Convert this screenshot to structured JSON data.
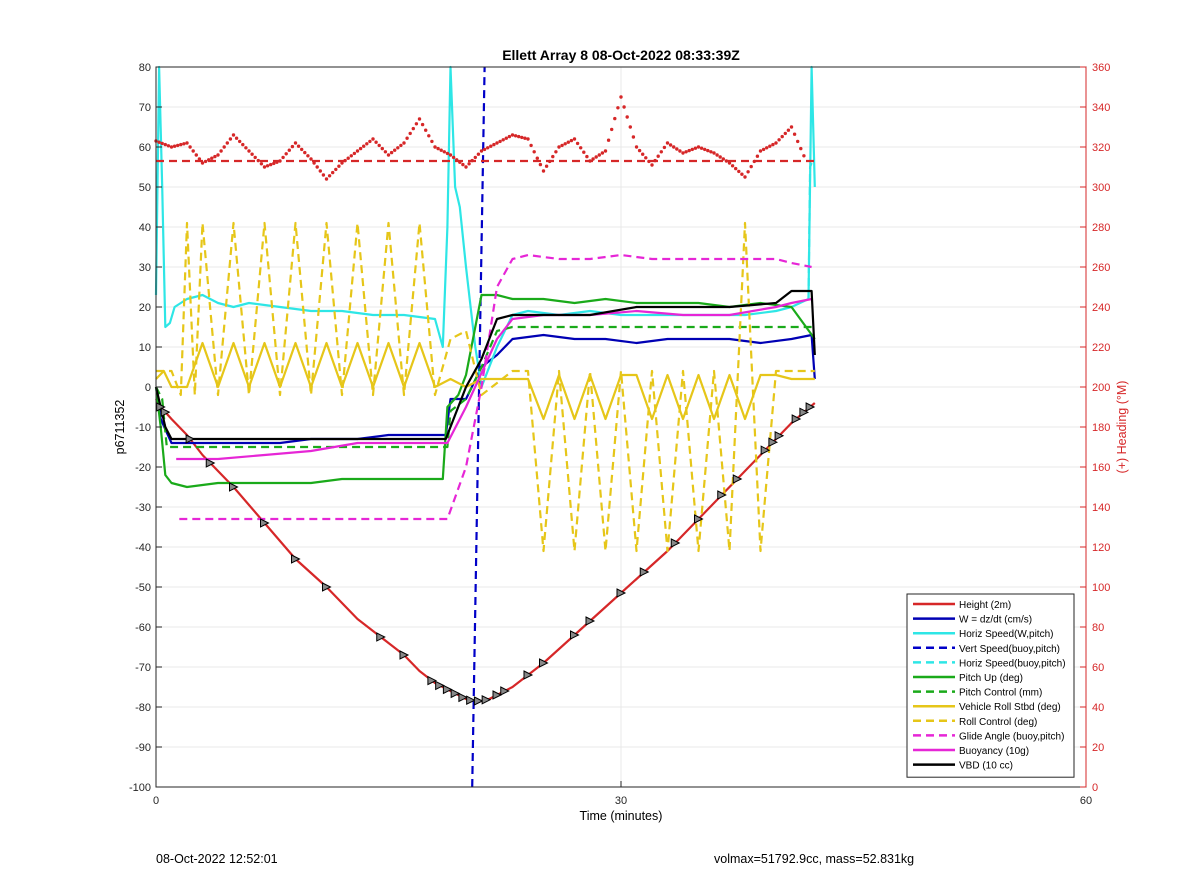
{
  "footer": {
    "timestamp": "08-Oct-2022 12:52:01",
    "vol_mass": "volmax=51792.9cc, mass=52.831kg"
  },
  "chart_data": {
    "type": "line",
    "title": "Ellett Array 8 08-Oct-2022 08:33:39Z",
    "xlabel": "Time (minutes)",
    "ylabel": "p6711352",
    "y2label": "(+) Heading (°M)",
    "xlim": [
      0,
      60
    ],
    "ylim": [
      -100,
      80
    ],
    "y2lim": [
      0,
      360
    ],
    "xticks": [
      0,
      30,
      60
    ],
    "yticks": [
      -100,
      -90,
      -80,
      -70,
      -60,
      -50,
      -40,
      -30,
      -20,
      -10,
      0,
      10,
      20,
      30,
      40,
      50,
      60,
      70,
      80
    ],
    "y2ticks": [
      0,
      20,
      40,
      60,
      80,
      100,
      120,
      140,
      160,
      180,
      200,
      220,
      240,
      260,
      280,
      300,
      320,
      340,
      360
    ],
    "grid": true,
    "legend_position": "bottom-right",
    "colors": {
      "height": "#d62728",
      "w": "#0000b4",
      "horiz_speed": "#2ee6e6",
      "vert_speed_buoy": "#0000c8",
      "horiz_speed_buoy": "#2ee6e6",
      "pitch": "#1aaa1a",
      "pitch_control": "#1aaa1a",
      "roll": "#e6c619",
      "roll_control": "#e6c619",
      "glide": "#e626d6",
      "buoyancy": "#e626d6",
      "vbd": "#000000",
      "heading": "#d62728"
    },
    "series": [
      {
        "name": "Height (2m)",
        "color_key": "height",
        "dash": false,
        "x": [
          0,
          0.3,
          1,
          2,
          3,
          5,
          7,
          9,
          11,
          13,
          15,
          16,
          17,
          18,
          19,
          19.5,
          20,
          20.5,
          21,
          21.5,
          22,
          23,
          25,
          27,
          29,
          31,
          33,
          35,
          37,
          39,
          40,
          41,
          42.5
        ],
        "y": [
          -3,
          -5,
          -8,
          -12,
          -17,
          -25,
          -34,
          -43,
          -50,
          -58,
          -64,
          -67,
          -71,
          -74,
          -76,
          -77,
          -78,
          -78.5,
          -78.5,
          -78,
          -77,
          -75,
          -69,
          -62,
          -55,
          -48,
          -41,
          -33,
          -25,
          -17,
          -13,
          -9,
          -4
        ]
      },
      {
        "name": "W = dz/dt (cm/s)",
        "color_key": "w",
        "dash": false,
        "x": [
          0,
          0.3,
          1,
          3,
          5,
          8,
          10,
          13,
          15,
          17,
          18,
          18.7,
          19,
          20,
          21,
          22,
          23,
          25,
          27,
          29,
          31,
          33,
          35,
          37,
          39,
          41,
          42.3,
          42.5
        ],
        "y": [
          0,
          -8,
          -14,
          -14,
          -14,
          -14,
          -13,
          -13,
          -12,
          -12,
          -12,
          -12,
          -3,
          -3,
          5,
          8,
          12,
          13,
          12,
          12,
          11,
          12,
          12,
          12,
          11,
          12,
          13,
          2
        ]
      },
      {
        "name": "Horiz Speed(W,pitch)",
        "color_key": "horiz_speed",
        "dash": false,
        "x": [
          0,
          0.2,
          0.4,
          0.6,
          0.9,
          1.2,
          2,
          3,
          4,
          5,
          6,
          8,
          10,
          12,
          14,
          16,
          18,
          18.5,
          18.8,
          19,
          19.3,
          19.6,
          20,
          20.3,
          20.6,
          21,
          22,
          23,
          24,
          26,
          28,
          30,
          32,
          34,
          36,
          38,
          40,
          41,
          42.1,
          42.3,
          42.5
        ],
        "y": [
          23,
          80,
          50,
          15,
          16,
          20,
          22,
          23,
          21,
          20,
          21,
          20,
          19,
          19,
          18,
          18,
          17,
          10,
          40,
          80,
          50,
          45,
          30,
          20,
          10,
          0,
          10,
          18,
          19,
          18,
          19,
          18,
          18,
          18,
          18,
          18,
          19,
          20,
          22,
          80,
          50
        ]
      },
      {
        "name": "Vert Speed(buoy,pitch)",
        "color_key": "vert_speed_buoy",
        "dash": true,
        "x": [
          20.4,
          21.2
        ],
        "y": [
          -100,
          80
        ]
      },
      {
        "name": "Horiz Speed(buoy,pitch)",
        "color_key": "horiz_speed_buoy",
        "dash": true,
        "x": [
          42.1,
          42.2,
          42.3
        ],
        "y": [
          22,
          55,
          56
        ]
      },
      {
        "name": "Pitch Up (deg)",
        "color_key": "pitch",
        "dash": false,
        "x": [
          0,
          0.3,
          0.6,
          1,
          2,
          4,
          6,
          8,
          10,
          12,
          14,
          16,
          18,
          18.5,
          18.8,
          19.5,
          20,
          21,
          22,
          23,
          25,
          27,
          29,
          31,
          33,
          35,
          37,
          39,
          41,
          42.5
        ],
        "y": [
          0,
          -10,
          -22,
          -24,
          -25,
          -24,
          -24,
          -24,
          -24,
          -23,
          -23,
          -23,
          -23,
          -23,
          -5,
          -2,
          3,
          23,
          23,
          22,
          22,
          21,
          22,
          21,
          21,
          21,
          20,
          21,
          20,
          12
        ]
      },
      {
        "name": "Pitch Control (mm)",
        "color_key": "pitch_control",
        "dash": true,
        "x": [
          0,
          0.4,
          0.7,
          18.8,
          19,
          20,
          21,
          22,
          23,
          42.3
        ],
        "y": [
          0,
          -3,
          -15,
          -15,
          -6,
          -3,
          5,
          14,
          15,
          15
        ]
      },
      {
        "name": "Vehicle Roll Stbd (deg)",
        "color_key": "roll",
        "dash": false,
        "x": [
          0,
          0.5,
          1,
          2,
          3,
          4,
          5,
          6,
          7,
          8,
          9,
          10,
          11,
          12,
          13,
          14,
          15,
          16,
          17,
          18,
          19,
          20,
          21,
          23,
          24,
          25,
          26,
          27,
          28,
          29,
          30,
          31,
          32,
          33,
          34,
          35,
          36,
          37,
          38,
          39,
          40,
          41,
          42.5
        ],
        "y": [
          2,
          4,
          0,
          0,
          11,
          0,
          11,
          0,
          11,
          0,
          11,
          0,
          11,
          0,
          11,
          0,
          11,
          0,
          11,
          0,
          2,
          0,
          2,
          2,
          2,
          -8,
          3,
          -8,
          3,
          -8,
          3,
          3,
          -8,
          3,
          -8,
          3,
          -8,
          3,
          -8,
          3,
          3,
          2,
          2
        ]
      },
      {
        "name": "Roll Control (deg)",
        "color_key": "roll_control",
        "dash": true,
        "x": [
          0,
          0.5,
          1,
          1.6,
          2,
          2.5,
          3,
          4,
          5,
          6,
          7,
          8,
          9,
          10,
          11,
          12,
          13,
          14,
          15,
          16,
          17,
          18,
          19,
          20,
          21,
          23,
          24,
          25,
          26,
          27,
          28,
          29,
          30,
          31,
          32,
          33,
          34,
          35,
          36,
          37,
          38,
          39,
          40,
          41,
          42.5
        ],
        "y": [
          4,
          4,
          4,
          -2,
          41,
          -2,
          41,
          -2,
          41,
          -2,
          41,
          -2,
          41,
          -2,
          41,
          -2,
          41,
          -2,
          41,
          -2,
          41,
          -2,
          12,
          14,
          -2,
          4,
          4,
          -41,
          4,
          -41,
          4,
          -41,
          4,
          -41,
          4,
          -41,
          4,
          -41,
          4,
          -41,
          41,
          -41,
          4,
          4,
          4
        ]
      },
      {
        "name": "Glide Angle (buoy,pitch)",
        "color_key": "glide",
        "dash": true,
        "x": [
          1.5,
          3,
          6,
          9,
          12,
          15,
          18,
          18.8,
          20,
          21,
          22,
          23,
          24,
          26,
          28,
          30,
          32,
          34,
          36,
          38,
          40,
          41,
          42.3
        ],
        "y": [
          -33,
          -33,
          -33,
          -33,
          -33,
          -33,
          -33,
          -33,
          -20,
          0,
          25,
          32,
          33,
          32,
          32,
          33,
          32,
          32,
          32,
          32,
          32,
          31,
          30
        ]
      },
      {
        "name": "Buoyancy (10g)",
        "color_key": "buoyancy",
        "dash": false,
        "x": [
          1.3,
          4,
          7,
          10,
          13,
          16,
          18.8,
          20,
          22,
          23,
          25,
          28,
          31,
          34,
          37,
          40,
          41,
          42.3
        ],
        "y": [
          -18,
          -18,
          -17,
          -16,
          -14,
          -14,
          -14,
          -5,
          12,
          17,
          18,
          18,
          19,
          18,
          18,
          20,
          21,
          22
        ]
      },
      {
        "name": "VBD (10 cc)",
        "color_key": "vbd",
        "dash": false,
        "x": [
          0,
          0.3,
          0.6,
          1,
          5,
          10,
          15,
          18.7,
          20,
          21,
          22,
          23,
          25,
          28,
          31,
          34,
          37,
          40,
          41,
          42.3,
          42.5
        ],
        "y": [
          0,
          -5,
          -10,
          -13,
          -13,
          -13,
          -13,
          -13,
          0,
          7,
          17,
          18,
          18,
          18,
          20,
          20,
          20,
          21,
          24,
          24,
          8
        ]
      },
      {
        "name": "Heading",
        "color_key": "heading",
        "dash": false,
        "dotted": true,
        "axis": "right",
        "x": [
          0,
          1,
          2,
          3,
          4,
          5,
          6,
          7,
          8,
          9,
          10,
          11,
          12,
          13,
          14,
          15,
          16,
          17,
          18,
          19,
          20,
          21,
          22,
          23,
          24,
          25,
          26,
          27,
          28,
          29,
          30,
          31,
          32,
          33,
          34,
          35,
          36,
          37,
          38,
          39,
          40,
          41,
          42
        ],
        "y": [
          323,
          320,
          322,
          312,
          316,
          326,
          318,
          310,
          313,
          322,
          314,
          304,
          312,
          318,
          324,
          316,
          322,
          334,
          320,
          316,
          310,
          318,
          322,
          326,
          324,
          308,
          320,
          324,
          313,
          318,
          345,
          320,
          311,
          322,
          317,
          320,
          317,
          312,
          305,
          318,
          322,
          330,
          312
        ]
      },
      {
        "name": "Heading reference",
        "color_key": "heading",
        "dash": true,
        "axis": "right",
        "x": [
          0,
          42.5
        ],
        "y": [
          313,
          313
        ]
      }
    ],
    "legend": [
      "Height (2m)",
      "W = dz/dt (cm/s)",
      "Horiz Speed(W,pitch)",
      "Vert Speed(buoy,pitch)",
      "Horiz Speed(buoy,pitch)",
      "Pitch Up (deg)",
      "Pitch Control (mm)",
      "Vehicle Roll Stbd (deg)",
      "Roll Control (deg)",
      "Glide Angle (buoy,pitch)",
      "Buoyancy (10g)",
      "VBD (10 cc)"
    ],
    "markers": {
      "series": "Height (2m)",
      "symbol": "triangle",
      "x": [
        0.3,
        0.6,
        2.2,
        3.5,
        5,
        7,
        9,
        11,
        14.5,
        16,
        17.8,
        18.3,
        18.8,
        19.3,
        19.8,
        20.3,
        20.8,
        21.3,
        22,
        22.5,
        24,
        25,
        27,
        28,
        30,
        31.5,
        33.5,
        35,
        36.5,
        37.5,
        39.3,
        39.8,
        40.2,
        41.3,
        41.8,
        42.2
      ]
    }
  }
}
